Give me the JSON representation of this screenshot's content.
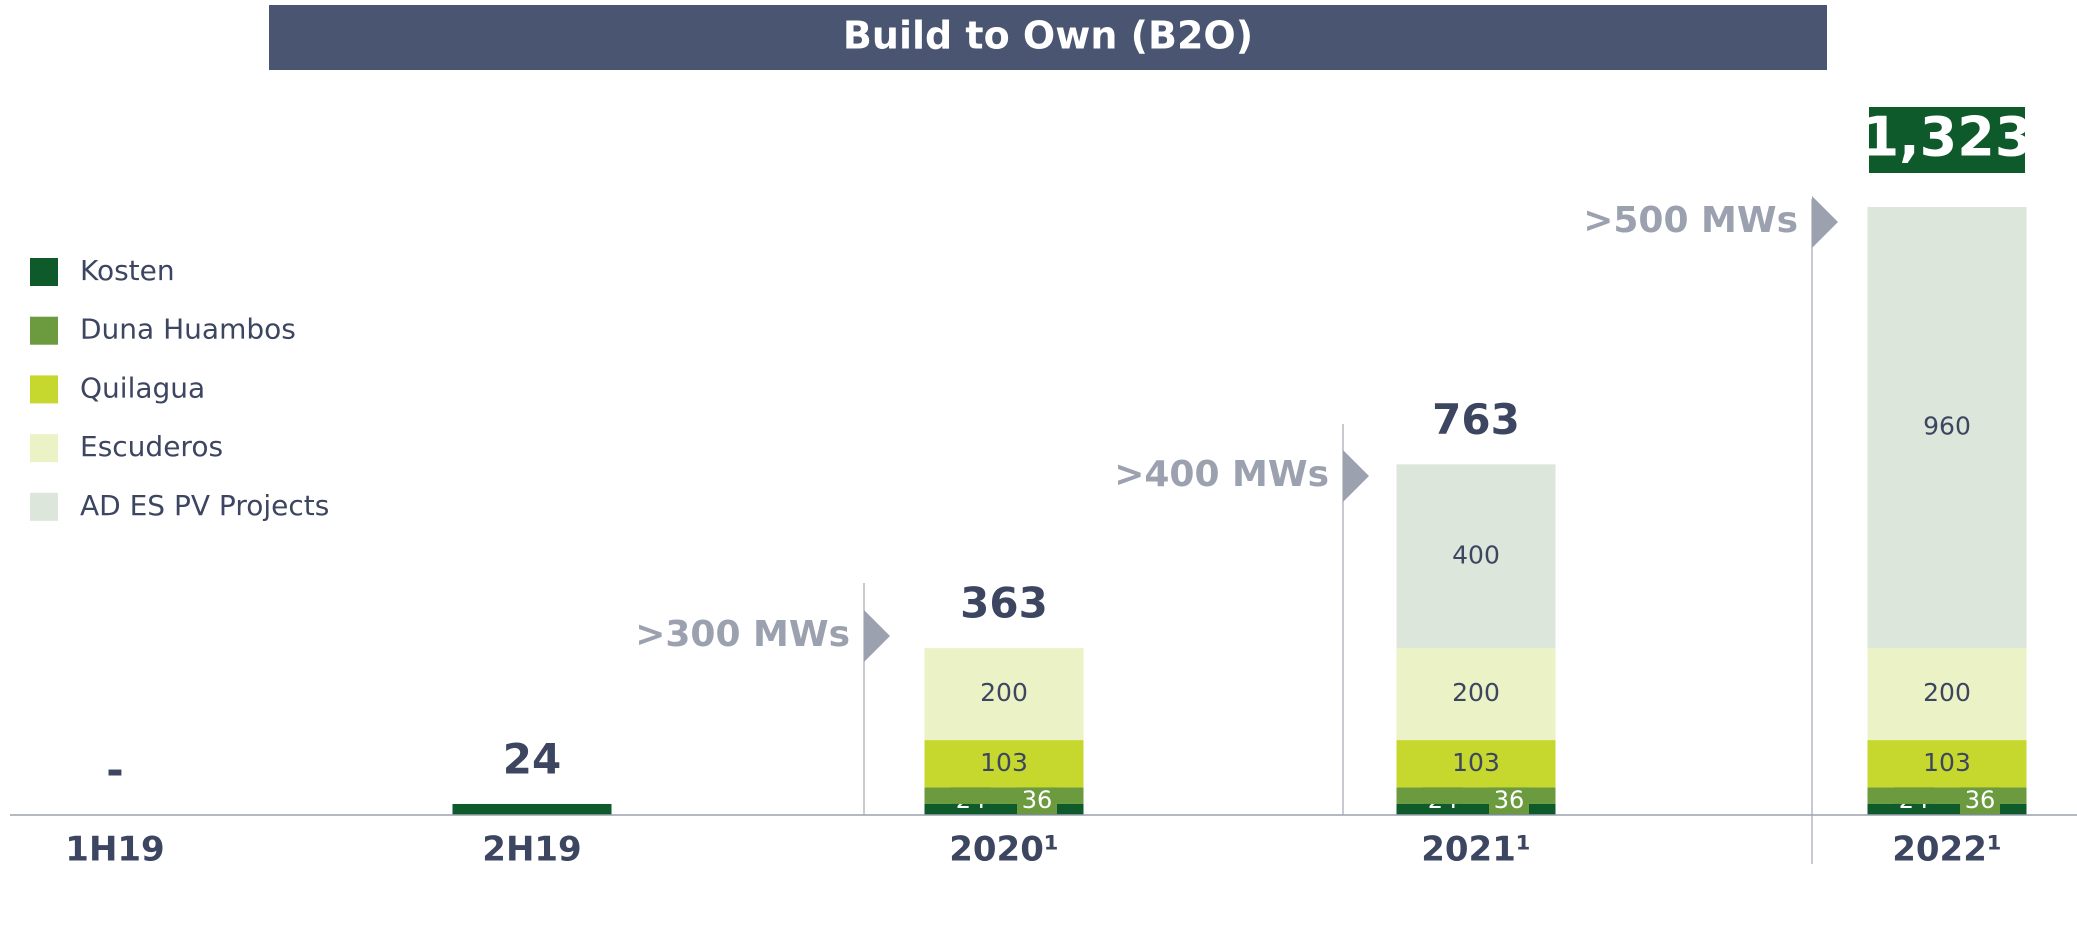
{
  "chart_data": {
    "type": "stacked_bar",
    "title": "Build to Own (B2O)",
    "categories": [
      "1H19",
      "2H19",
      "2020¹",
      "2021¹",
      "2022¹"
    ],
    "series": [
      {
        "name": "Kosten",
        "color": "#0e5a2b",
        "values": [
          0,
          24,
          24,
          24,
          24
        ]
      },
      {
        "name": "Duna Huambos",
        "color": "#6b9a3f",
        "values": [
          0,
          0,
          36,
          36,
          36
        ]
      },
      {
        "name": "Quilagua",
        "color": "#c6d72d",
        "values": [
          0,
          0,
          103,
          103,
          103
        ]
      },
      {
        "name": "Escuderos",
        "color": "#ebf2c6",
        "values": [
          0,
          0,
          200,
          200,
          200
        ]
      },
      {
        "name": "AD ES PV Projects",
        "color": "#dce6da",
        "values": [
          0,
          0,
          0,
          400,
          960
        ]
      }
    ],
    "totals": [
      0,
      24,
      363,
      763,
      1323
    ],
    "total_labels": [
      "-",
      "24",
      "363",
      "763",
      "1,323"
    ],
    "annotations": [
      ">300 MWs",
      ">400 MWs",
      ">500 MWs"
    ],
    "legend": "left"
  }
}
